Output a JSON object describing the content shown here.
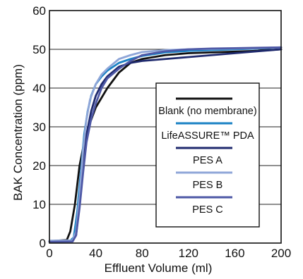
{
  "chart_data": {
    "type": "line",
    "title": "",
    "xlabel": "Effluent Volume (ml)",
    "ylabel": "BAK Concentration (ppm)",
    "xlim": [
      0,
      200
    ],
    "ylim": [
      0,
      60
    ],
    "x_ticks": [
      "0",
      "40",
      "80",
      "120",
      "160",
      "200"
    ],
    "y_ticks": [
      "0",
      "10",
      "20",
      "30",
      "40",
      "50",
      "60"
    ],
    "grid": "horizontal",
    "legend_position": "center-right",
    "series": [
      {
        "name": "Blank (no membrane)",
        "color": "#111111",
        "x": [
          0,
          15,
          18,
          22,
          26,
          30,
          35,
          40,
          50,
          60,
          70,
          80,
          100,
          120,
          140,
          160,
          180,
          200
        ],
        "y": [
          0.5,
          0.8,
          3,
          10,
          20,
          26,
          31,
          35,
          40,
          44,
          46.5,
          47.5,
          48.5,
          49,
          49.2,
          49.4,
          49.6,
          50
        ]
      },
      {
        "name": "LifeASSURE™ PDA",
        "color": "#1a82c4",
        "x": [
          0,
          18,
          21,
          24,
          27,
          30,
          33,
          36,
          40,
          45,
          50,
          60,
          70,
          80,
          100,
          120,
          140,
          160,
          180,
          200
        ],
        "y": [
          0.5,
          0.6,
          1.5,
          8,
          18,
          28,
          34,
          38,
          41,
          43,
          44.5,
          46.5,
          47.5,
          48.3,
          49.2,
          49.6,
          49.8,
          50,
          50.2,
          50.5
        ]
      },
      {
        "name": "PES A",
        "color": "#1f2a6e",
        "x": [
          0,
          20,
          23,
          26,
          29,
          32,
          36,
          40,
          45,
          50,
          60,
          70,
          80,
          100,
          120,
          140,
          160,
          180,
          200
        ],
        "y": [
          0.4,
          0.5,
          2,
          10,
          20,
          28,
          34,
          38,
          41,
          43,
          45.5,
          46.5,
          47,
          47.5,
          48,
          48.5,
          49,
          49.5,
          50
        ]
      },
      {
        "name": "PES B",
        "color": "#8fa6d8",
        "x": [
          0,
          20,
          23,
          26,
          29,
          32,
          35,
          40,
          45,
          50,
          60,
          70,
          80,
          100,
          120,
          140,
          160,
          180,
          200
        ],
        "y": [
          0.6,
          0.7,
          3,
          12,
          24,
          32,
          37,
          41,
          43.5,
          45,
          47.5,
          48.5,
          49.3,
          49.8,
          50,
          50.1,
          50.2,
          50.3,
          50.5
        ]
      },
      {
        "name": "PES C",
        "color": "#4e58a6",
        "x": [
          0,
          20,
          23,
          26,
          29,
          32,
          36,
          40,
          45,
          50,
          60,
          70,
          80,
          100,
          120,
          140,
          160,
          180,
          200
        ],
        "y": [
          0.3,
          0.4,
          2,
          9,
          18,
          26,
          32,
          36,
          40,
          42.5,
          45,
          47,
          48.5,
          49.5,
          50,
          50.2,
          50.3,
          50.4,
          50.5
        ]
      }
    ]
  }
}
